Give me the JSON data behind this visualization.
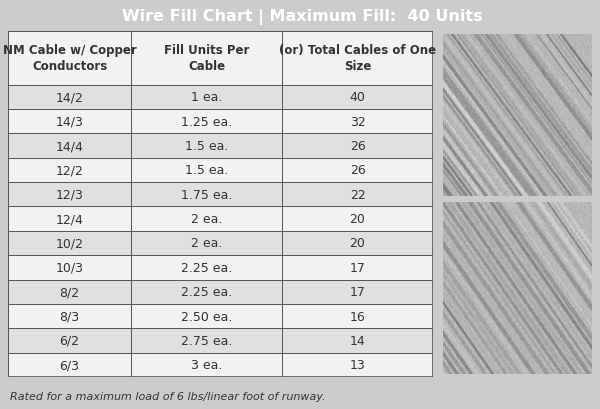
{
  "title": "Wire Fill Chart | Maximum Fill:  40 Units",
  "title_bg": "#666666",
  "title_color": "#ffffff",
  "header": [
    "NM Cable w/ Copper\nConductors",
    "Fill Units Per\nCable",
    "(or) Total Cables of One\nSize"
  ],
  "rows": [
    [
      "14/2",
      "1 ea.",
      "40"
    ],
    [
      "14/3",
      "1.25 ea.",
      "32"
    ],
    [
      "14/4",
      "1.5 ea.",
      "26"
    ],
    [
      "12/2",
      "1.5 ea.",
      "26"
    ],
    [
      "12/3",
      "1.75 ea.",
      "22"
    ],
    [
      "12/4",
      "2 ea.",
      "20"
    ],
    [
      "10/2",
      "2 ea.",
      "20"
    ],
    [
      "10/3",
      "2.25 ea.",
      "17"
    ],
    [
      "8/2",
      "2.25 ea.",
      "17"
    ],
    [
      "8/3",
      "2.50 ea.",
      "16"
    ],
    [
      "6/2",
      "2.75 ea.",
      "14"
    ],
    [
      "6/3",
      "3 ea.",
      "13"
    ]
  ],
  "row_colors_even": "#e0e0e0",
  "row_colors_odd": "#f2f2f2",
  "header_bg": "#f2f2f2",
  "border_color": "#555555",
  "text_color": "#333333",
  "footnote": "Rated for a maximum load of 6 lbs/linear foot of runway.",
  "bg_color": "#cccccc",
  "font_size_title": 11.5,
  "font_size_header": 8.5,
  "font_size_data": 9,
  "font_size_footnote": 8
}
